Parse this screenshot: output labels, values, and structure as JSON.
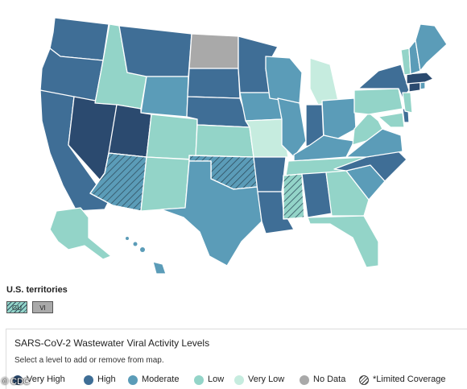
{
  "colors": {
    "very_high": "#2b4a6f",
    "high": "#3f6e96",
    "moderate": "#5b9cb8",
    "low": "#93d4c8",
    "very_low": "#c6ecdf",
    "no_data": "#a9a9a9"
  },
  "states": {
    "WA": "high",
    "OR": "high",
    "CA": "high",
    "NV": "very_high",
    "ID": "low",
    "MT": "high",
    "WY": "moderate",
    "UT": "very_high",
    "AZ": "moderate",
    "CO": "low",
    "NM": "low",
    "ND": "no_data",
    "SD": "high",
    "NE": "high",
    "KS": "low",
    "OK": "moderate",
    "TX": "moderate",
    "MN": "high",
    "IA": "moderate",
    "MO": "very_low",
    "AR": "high",
    "LA": "high",
    "WI": "moderate",
    "IL": "moderate",
    "MI": "very_low",
    "IN": "high",
    "OH": "moderate",
    "KY": "moderate",
    "TN": "low",
    "MS": "low",
    "AL": "high",
    "GA": "low",
    "FL": "low",
    "SC": "moderate",
    "NC": "high",
    "VA": "moderate",
    "WV": "low",
    "PA": "low",
    "NY": "high",
    "ME": "moderate",
    "NH": "moderate",
    "VT": "low",
    "MA": "very_high",
    "CT": "very_high",
    "RI": "moderate",
    "NJ": "low",
    "DE": "high",
    "MD": "low",
    "AK": "low",
    "HI": "moderate"
  },
  "limited_coverage_states": [
    "AZ",
    "OK",
    "MS"
  ],
  "territories": {
    "title": "U.S. territories",
    "items": [
      {
        "code": "GU",
        "level": "low",
        "limited": true
      },
      {
        "code": "VI",
        "level": "no_data",
        "limited": false
      }
    ]
  },
  "legend": {
    "title": "SARS-CoV-2 Wastewater Viral Activity Levels",
    "subtitle": "Select a level to add or remove from map.",
    "items": [
      {
        "label": "Very High",
        "level": "very_high"
      },
      {
        "label": "High",
        "level": "high"
      },
      {
        "label": "Moderate",
        "level": "moderate"
      },
      {
        "label": "Low",
        "level": "low"
      },
      {
        "label": "Very Low",
        "level": "very_low"
      },
      {
        "label": "No Data",
        "level": "no_data"
      },
      {
        "label": "*Limited Coverage",
        "level": "limited"
      }
    ]
  },
  "credit": "© CDC"
}
